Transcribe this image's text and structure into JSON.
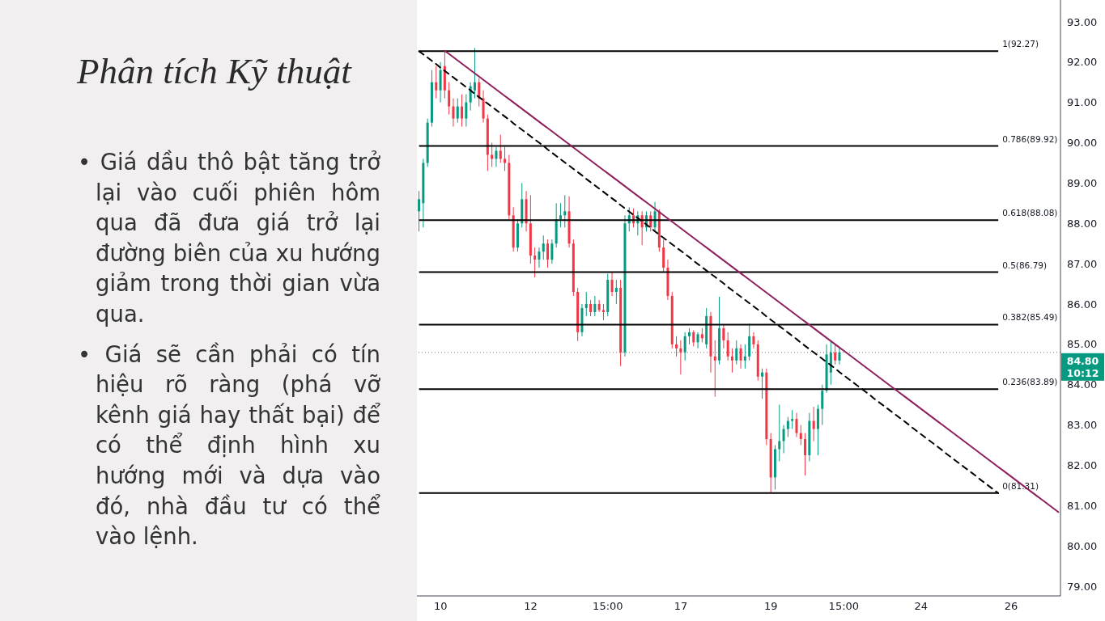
{
  "chart_data": {
    "type": "candlestick",
    "title": "Phân tích Kỹ thuật",
    "annotations": [
      "• Giá dầu thô bật tăng trở lại vào cuối phiên hôm qua đã đưa giá trở lại đường biên của xu hướng giảm trong thời gian vừa qua.",
      "• Giá sẽ cần phải có tín hiệu rõ ràng (phá vỡ kênh giá hay thất bại) để có thể định hình xu hướng mới và dựa vào đó, nhà đầu tư có thể vào lệnh."
    ],
    "categories": [
      null,
      null,
      null,
      null,
      null,
      "10",
      null,
      null,
      null,
      null,
      null,
      null,
      null,
      null,
      null,
      null,
      null,
      null,
      null,
      null,
      null,
      null,
      null,
      null,
      null,
      null,
      "12",
      null,
      null,
      null,
      null,
      null,
      null,
      null,
      null,
      null,
      null,
      null,
      null,
      null,
      null,
      null,
      null,
      null,
      "15:00",
      null,
      null,
      null,
      null,
      null,
      null,
      null,
      null,
      null,
      null,
      null,
      null,
      null,
      null,
      null,
      null,
      "17",
      null,
      null,
      null,
      null,
      null,
      null,
      null,
      null,
      null,
      null,
      null,
      null,
      null,
      null,
      null,
      null,
      null,
      null,
      null,
      null,
      "19",
      null,
      null,
      null,
      null,
      null,
      null,
      null,
      null,
      null,
      null,
      null,
      null,
      null,
      null,
      null,
      null,
      "15:00",
      null,
      null,
      null,
      null,
      null,
      null,
      null,
      null,
      null,
      null,
      null,
      null,
      null,
      null,
      null,
      null,
      null,
      "24",
      null,
      null,
      null,
      null,
      null,
      null,
      null,
      null,
      null,
      null,
      null,
      null,
      null,
      null,
      null,
      null,
      null,
      null,
      null,
      null,
      "26",
      null,
      null,
      null,
      null,
      null,
      null,
      null,
      null,
      null,
      null,
      null
    ],
    "ohlc": [
      [
        88.3,
        88.8,
        87.8,
        88.6
      ],
      [
        88.5,
        89.6,
        87.9,
        89.5
      ],
      [
        89.5,
        90.6,
        89.4,
        90.5
      ],
      [
        90.5,
        91.8,
        90.4,
        91.5
      ],
      [
        91.5,
        91.9,
        91.1,
        91.3
      ],
      [
        91.3,
        92.0,
        91.0,
        91.8
      ],
      [
        91.9,
        92.27,
        91.1,
        91.3
      ],
      [
        91.3,
        91.5,
        90.7,
        90.9
      ],
      [
        90.9,
        91.1,
        90.4,
        90.6
      ],
      [
        90.6,
        91.1,
        90.5,
        90.9
      ],
      [
        90.9,
        91.2,
        90.4,
        90.6
      ],
      [
        90.6,
        91.2,
        90.4,
        91.0
      ],
      [
        91.0,
        91.5,
        90.8,
        91.4
      ],
      [
        91.3,
        92.35,
        91.1,
        91.5
      ],
      [
        91.5,
        91.6,
        90.9,
        91.1
      ],
      [
        91.1,
        91.3,
        90.5,
        90.6
      ],
      [
        90.6,
        90.7,
        89.3,
        89.7
      ],
      [
        89.7,
        90.0,
        89.4,
        89.6
      ],
      [
        89.6,
        89.9,
        89.4,
        89.8
      ],
      [
        89.8,
        90.2,
        89.5,
        89.6
      ],
      [
        89.6,
        89.9,
        89.3,
        89.5
      ],
      [
        89.5,
        89.7,
        88.1,
        88.2
      ],
      [
        88.2,
        88.4,
        87.3,
        87.4
      ],
      [
        87.4,
        88.1,
        87.3,
        88.0
      ],
      [
        88.0,
        89.0,
        87.9,
        88.6
      ],
      [
        88.6,
        88.8,
        87.8,
        88.0
      ],
      [
        88.0,
        88.7,
        87.0,
        87.2
      ],
      [
        87.2,
        87.4,
        86.66,
        87.1
      ],
      [
        87.1,
        87.4,
        86.9,
        87.3
      ],
      [
        87.3,
        87.7,
        87.1,
        87.5
      ],
      [
        87.5,
        87.6,
        86.9,
        87.1
      ],
      [
        87.1,
        87.6,
        87.0,
        87.5
      ],
      [
        87.5,
        88.5,
        87.4,
        88.1
      ],
      [
        88.1,
        88.5,
        87.9,
        88.2
      ],
      [
        88.2,
        88.7,
        87.9,
        88.3
      ],
      [
        88.3,
        88.67,
        87.4,
        87.5
      ],
      [
        87.5,
        87.6,
        86.2,
        86.3
      ],
      [
        86.3,
        86.4,
        85.08,
        85.3
      ],
      [
        85.3,
        86.0,
        85.2,
        85.9
      ],
      [
        85.9,
        86.3,
        85.7,
        86.0
      ],
      [
        86.0,
        86.1,
        85.7,
        85.8
      ],
      [
        85.8,
        86.2,
        85.7,
        86.0
      ],
      [
        86.0,
        86.1,
        85.8,
        85.85
      ],
      [
        85.85,
        86.0,
        85.6,
        85.8
      ],
      [
        85.8,
        86.75,
        85.7,
        86.6
      ],
      [
        86.6,
        86.8,
        86.2,
        86.3
      ],
      [
        86.3,
        86.6,
        86.0,
        86.4
      ],
      [
        86.4,
        86.6,
        84.46,
        84.8
      ],
      [
        84.8,
        88.2,
        84.7,
        88.0
      ],
      [
        88.0,
        88.4,
        87.8,
        88.2
      ],
      [
        88.2,
        88.37,
        87.9,
        88.0
      ],
      [
        88.0,
        88.3,
        87.7,
        88.2
      ],
      [
        88.2,
        88.3,
        87.46,
        87.9
      ],
      [
        87.9,
        88.3,
        87.8,
        88.2
      ],
      [
        88.2,
        88.3,
        87.8,
        87.9
      ],
      [
        87.9,
        88.53,
        87.8,
        88.3
      ],
      [
        88.3,
        88.35,
        87.3,
        87.4
      ],
      [
        87.4,
        87.6,
        86.8,
        86.9
      ],
      [
        86.9,
        87.1,
        86.1,
        86.2
      ],
      [
        86.2,
        86.3,
        84.9,
        85.0
      ],
      [
        85.0,
        85.2,
        84.7,
        84.9
      ],
      [
        84.9,
        85.1,
        84.25,
        84.8
      ],
      [
        84.8,
        85.3,
        84.6,
        85.2
      ],
      [
        85.2,
        85.4,
        85.0,
        85.3
      ],
      [
        85.3,
        85.35,
        84.95,
        85.05
      ],
      [
        85.05,
        85.3,
        84.9,
        85.25
      ],
      [
        85.25,
        85.4,
        85.05,
        85.15
      ],
      [
        85.0,
        85.9,
        84.9,
        85.7
      ],
      [
        85.7,
        85.8,
        84.3,
        84.7
      ],
      [
        84.7,
        85.1,
        83.7,
        84.6
      ],
      [
        84.6,
        86.18,
        84.5,
        85.4
      ],
      [
        85.4,
        85.5,
        84.9,
        85.1
      ],
      [
        85.1,
        85.3,
        84.6,
        84.7
      ],
      [
        84.7,
        84.9,
        84.3,
        84.6
      ],
      [
        84.6,
        85.1,
        84.5,
        84.9
      ],
      [
        84.9,
        85.0,
        84.4,
        84.6
      ],
      [
        84.6,
        85.0,
        84.4,
        84.7
      ],
      [
        84.7,
        85.52,
        84.6,
        85.2
      ],
      [
        85.2,
        85.3,
        84.9,
        85.0
      ],
      [
        85.0,
        85.1,
        84.1,
        84.2
      ],
      [
        84.2,
        84.4,
        83.65,
        84.3
      ],
      [
        84.3,
        84.4,
        82.5,
        82.65
      ],
      [
        82.65,
        82.8,
        81.31,
        81.7
      ],
      [
        81.7,
        82.5,
        81.4,
        82.4
      ],
      [
        82.4,
        83.5,
        82.1,
        82.6
      ],
      [
        82.6,
        83.0,
        82.3,
        82.9
      ],
      [
        82.9,
        83.2,
        82.7,
        83.1
      ],
      [
        83.1,
        83.37,
        82.9,
        83.15
      ],
      [
        83.15,
        83.3,
        82.7,
        82.8
      ],
      [
        82.8,
        83.0,
        82.5,
        82.65
      ],
      [
        82.65,
        82.8,
        81.75,
        82.25
      ],
      [
        82.25,
        83.3,
        82.1,
        83.1
      ],
      [
        83.1,
        83.45,
        82.6,
        82.9
      ],
      [
        82.9,
        83.5,
        82.25,
        83.4
      ],
      [
        83.4,
        84.0,
        83.0,
        83.85
      ],
      [
        83.85,
        85.0,
        83.8,
        84.75
      ],
      [
        84.3,
        85.06,
        84.0,
        84.8
      ],
      [
        84.8,
        85.0,
        84.5,
        84.6
      ],
      [
        84.6,
        84.9,
        84.5,
        84.8
      ],
      null,
      null,
      null,
      null,
      null,
      null,
      null,
      null,
      null,
      null,
      null,
      null,
      null,
      null,
      null,
      null,
      null,
      null,
      null,
      null,
      null,
      null,
      null,
      null,
      null,
      null,
      null,
      null,
      null,
      null,
      null,
      null,
      null,
      null,
      null,
      null,
      null,
      null,
      null,
      null,
      null,
      null,
      null,
      null,
      null,
      null,
      null,
      null,
      null,
      null,
      null
    ],
    "colors": [
      "#089981",
      "#089981",
      "#089981",
      "#089981",
      "#f23645",
      "#089981",
      "#f23645",
      "#f23645",
      "#f23645",
      "#089981",
      "#f23645",
      "#089981",
      "#089981",
      "#089981",
      "#f23645",
      "#f23645",
      "#f23645",
      "#f23645",
      "#089981",
      "#f23645",
      "#f23645",
      "#f23645",
      "#f23645",
      "#089981",
      "#089981",
      "#f23645",
      "#f23645",
      "#f23645",
      "#089981",
      "#089981",
      "#f23645",
      "#089981",
      "#089981",
      "#089981",
      "#089981",
      "#f23645",
      "#f23645",
      "#f23645",
      "#089981",
      "#089981",
      "#f23645",
      "#089981",
      "#f23645",
      "#f23645",
      "#089981",
      "#f23645",
      "#089981",
      "#f23645",
      "#089981",
      "#089981",
      "#f23645",
      "#089981",
      "#f23645",
      "#089981",
      "#f23645",
      "#089981",
      "#f23645",
      "#f23645",
      "#f23645",
      "#f23645",
      "#f23645",
      "#f23645",
      "#089981",
      "#089981",
      "#f23645",
      "#089981",
      "#f23645",
      "#089981",
      "#f23645",
      "#f23645",
      "#089981",
      "#f23645",
      "#f23645",
      "#f23645",
      "#089981",
      "#f23645",
      "#089981",
      "#089981",
      "#f23645",
      "#f23645",
      "#089981",
      "#f23645",
      "#f23645",
      "#089981",
      "#089981",
      "#089981",
      "#089981",
      "#089981",
      "#f23645",
      "#f23645",
      "#f23645",
      "#089981",
      "#f23645",
      "#089981",
      "#089981",
      "#089981",
      "#089981",
      "#f23645",
      "#089981",
      null,
      null,
      null,
      null,
      null,
      null,
      null,
      null,
      null,
      null,
      null,
      null,
      null,
      null,
      null,
      null,
      null,
      null,
      null,
      null,
      null,
      null,
      null,
      null,
      null,
      null,
      null,
      null,
      null,
      null,
      null,
      null,
      null,
      null,
      null,
      null,
      null,
      null,
      null,
      null,
      null,
      null,
      null,
      null,
      null,
      null,
      null,
      null,
      null,
      null,
      null
    ],
    "series": [
      {
        "type": "line",
        "color": "#8e1f5b",
        "values": [
          null,
          null,
          null,
          null,
          null,
          null,
          92.28,
          92.2,
          92.12,
          92.04,
          91.96,
          91.88,
          91.8,
          91.72,
          91.64,
          91.56,
          91.48,
          91.4,
          91.32,
          91.24,
          91.16,
          91.08,
          91.0,
          90.92,
          90.84,
          90.76,
          90.68,
          90.6,
          90.52,
          90.44,
          90.36,
          90.28,
          90.2,
          90.12,
          90.04,
          89.96,
          89.88,
          89.8,
          89.72,
          89.64,
          89.56,
          89.48,
          89.4,
          89.32,
          89.24,
          89.16,
          89.08,
          89.0,
          88.92,
          88.84,
          88.76,
          88.68,
          88.6,
          88.52,
          88.44,
          88.36,
          88.28,
          88.2,
          88.12,
          88.04,
          87.96,
          87.88,
          87.8,
          87.72,
          87.64,
          87.56,
          87.48,
          87.4,
          87.32,
          87.24,
          87.16,
          87.08,
          87.0,
          86.92,
          86.84,
          86.76,
          86.68,
          86.6,
          86.52,
          86.44,
          86.36,
          86.28,
          86.2,
          86.12,
          86.04,
          85.96,
          85.88,
          85.8,
          85.72,
          85.64,
          85.56,
          85.48,
          85.4,
          85.32,
          85.24,
          85.16,
          85.08,
          85.0,
          84.92,
          84.84,
          84.76,
          84.68,
          84.6,
          84.52,
          84.44,
          84.36,
          84.28,
          84.2,
          84.12,
          84.04,
          83.96,
          83.88,
          83.8,
          83.72,
          83.64,
          83.56,
          83.48,
          83.4,
          83.32,
          83.24,
          83.16,
          83.08,
          83.0,
          82.92,
          82.84,
          82.76,
          82.68,
          82.6,
          82.52,
          82.44,
          82.36,
          82.28,
          82.2,
          82.12,
          82.04,
          81.96,
          81.88,
          81.8,
          81.72,
          81.64,
          81.56,
          81.48,
          81.4,
          81.32,
          81.24,
          81.16,
          81.08,
          81.0,
          80.92,
          80.84
        ]
      },
      {
        "type": "line",
        "color": "#000000",
        "line_style": "dashed",
        "values": [
          92.27,
          92.19,
          92.11,
          92.03,
          91.95,
          91.86,
          91.78,
          91.7,
          91.62,
          91.54,
          91.46,
          91.38,
          91.3,
          91.21,
          91.13,
          91.05,
          90.97,
          90.89,
          90.81,
          90.73,
          90.65,
          90.57,
          90.48,
          90.4,
          90.32,
          90.24,
          90.16,
          90.08,
          90.0,
          89.92,
          89.83,
          89.75,
          89.67,
          89.59,
          89.51,
          89.43,
          89.35,
          89.27,
          89.19,
          89.1,
          89.02,
          88.94,
          88.86,
          88.78,
          88.7,
          88.62,
          88.54,
          88.45,
          88.37,
          88.29,
          88.21,
          88.13,
          88.05,
          87.97,
          87.89,
          87.8,
          87.72,
          87.64,
          87.56,
          87.48,
          87.4,
          87.32,
          87.24,
          87.16,
          87.07,
          86.99,
          86.91,
          86.83,
          86.75,
          86.67,
          86.59,
          86.51,
          86.42,
          86.34,
          86.26,
          86.18,
          86.1,
          86.02,
          85.94,
          85.86,
          85.78,
          85.69,
          85.61,
          85.53,
          85.45,
          85.37,
          85.29,
          85.21,
          85.13,
          85.04,
          84.96,
          84.88,
          84.8,
          84.72,
          84.64,
          84.56,
          84.48,
          84.4,
          84.31,
          84.23,
          84.15,
          84.07,
          83.99,
          83.91,
          83.83,
          83.75,
          83.66,
          83.58,
          83.5,
          83.42,
          83.34,
          83.26,
          83.18,
          83.1,
          83.02,
          82.93,
          82.85,
          82.77,
          82.69,
          82.61,
          82.53,
          82.45,
          82.37,
          82.28,
          82.2,
          82.12,
          82.04,
          81.96,
          81.88,
          81.8,
          81.72,
          81.63,
          81.55,
          81.47,
          81.39,
          81.31,
          null,
          null,
          null,
          null,
          null,
          null,
          null,
          null,
          null,
          null,
          null,
          null,
          null,
          null
        ]
      }
    ],
    "ylim": [
      78.76,
      93.54
    ],
    "yticks": [
      {
        "value": 79,
        "label": "79.00"
      },
      {
        "value": 80,
        "label": "80.00"
      },
      {
        "value": 81,
        "label": "81.00"
      },
      {
        "value": 82,
        "label": "82.00"
      },
      {
        "value": 83,
        "label": "83.00"
      },
      {
        "value": 84,
        "label": "84.00"
      },
      {
        "value": 85,
        "label": "85.00"
      },
      {
        "value": 86,
        "label": "86.00"
      },
      {
        "value": 87,
        "label": "87.00"
      },
      {
        "value": 88,
        "label": "88.00"
      },
      {
        "value": 89,
        "label": "89.00"
      },
      {
        "value": 90,
        "label": "90.00"
      },
      {
        "value": 91,
        "label": "91.00"
      },
      {
        "value": 92,
        "label": "92.00"
      },
      {
        "value": 93,
        "label": "93.00"
      }
    ],
    "ref_lines": [
      {
        "axis": "y",
        "value": 92.27,
        "label": "1(92.27)",
        "color": "#000000"
      },
      {
        "axis": "y",
        "value": 89.92,
        "label": "0.786(89.92)",
        "color": "#000000"
      },
      {
        "axis": "y",
        "value": 88.08,
        "label": "0.618(88.08)",
        "color": "#000000"
      },
      {
        "axis": "y",
        "value": 86.79,
        "label": "0.5(86.79)",
        "color": "#000000"
      },
      {
        "axis": "y",
        "value": 85.49,
        "label": "0.382(85.49)",
        "color": "#000000"
      },
      {
        "axis": "y",
        "value": 83.89,
        "label": "0.236(83.89)",
        "color": "#000000"
      },
      {
        "axis": "y",
        "value": 81.31,
        "label": "0(81.31)",
        "color": "#000000"
      },
      {
        "axis": "y",
        "value": 84.8,
        "label": "84.80 10:12",
        "color": "#089981",
        "line_style": "dotted"
      }
    ]
  }
}
